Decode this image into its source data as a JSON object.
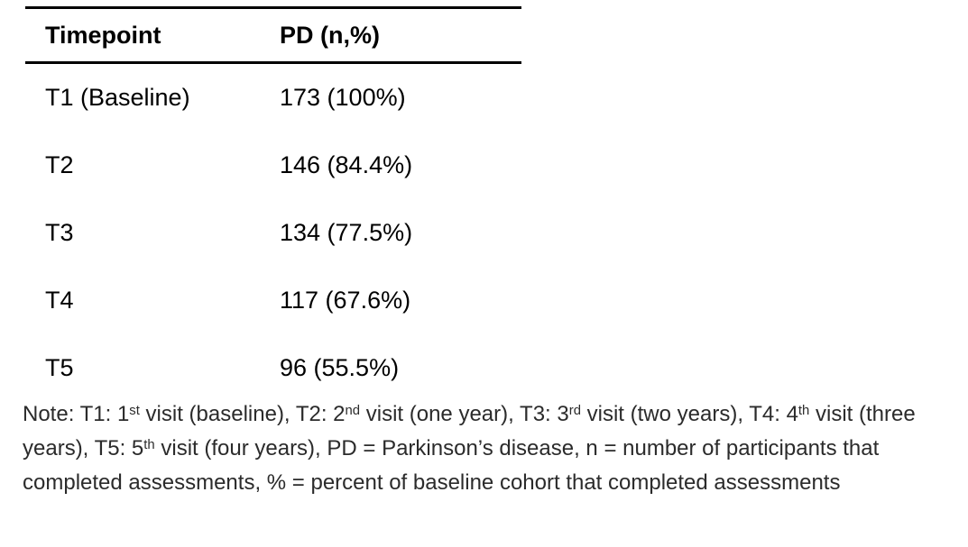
{
  "page": {
    "background": "#ffffff",
    "table_text_color": "#000000",
    "note_text_color": "#2b2b2b",
    "rule_color": "#000000"
  },
  "table": {
    "header": {
      "timepoint": "Timepoint",
      "pd": "PD (n,%)"
    },
    "rows": [
      {
        "timepoint": "T1 (Baseline)",
        "pd": "173 (100%)"
      },
      {
        "timepoint": "T2",
        "pd": "146 (84.4%)"
      },
      {
        "timepoint": "T3",
        "pd": "134 (77.5%)"
      },
      {
        "timepoint": "T4",
        "pd": "117 (67.6%)"
      },
      {
        "timepoint": "T5",
        "pd": "96 (55.5%)"
      }
    ]
  },
  "note": {
    "parts": [
      "Note: T1: 1",
      "st",
      " visit (baseline), T2: 2",
      "nd",
      " visit (one year), T3: 3",
      "rd",
      " visit (two years), T4: 4",
      "th",
      " visit (three years), T5: 5",
      "th",
      " visit (four years), PD = Parkinson’s disease, n = number of participants that completed assessments, % = percent of baseline cohort that completed assessments"
    ]
  }
}
